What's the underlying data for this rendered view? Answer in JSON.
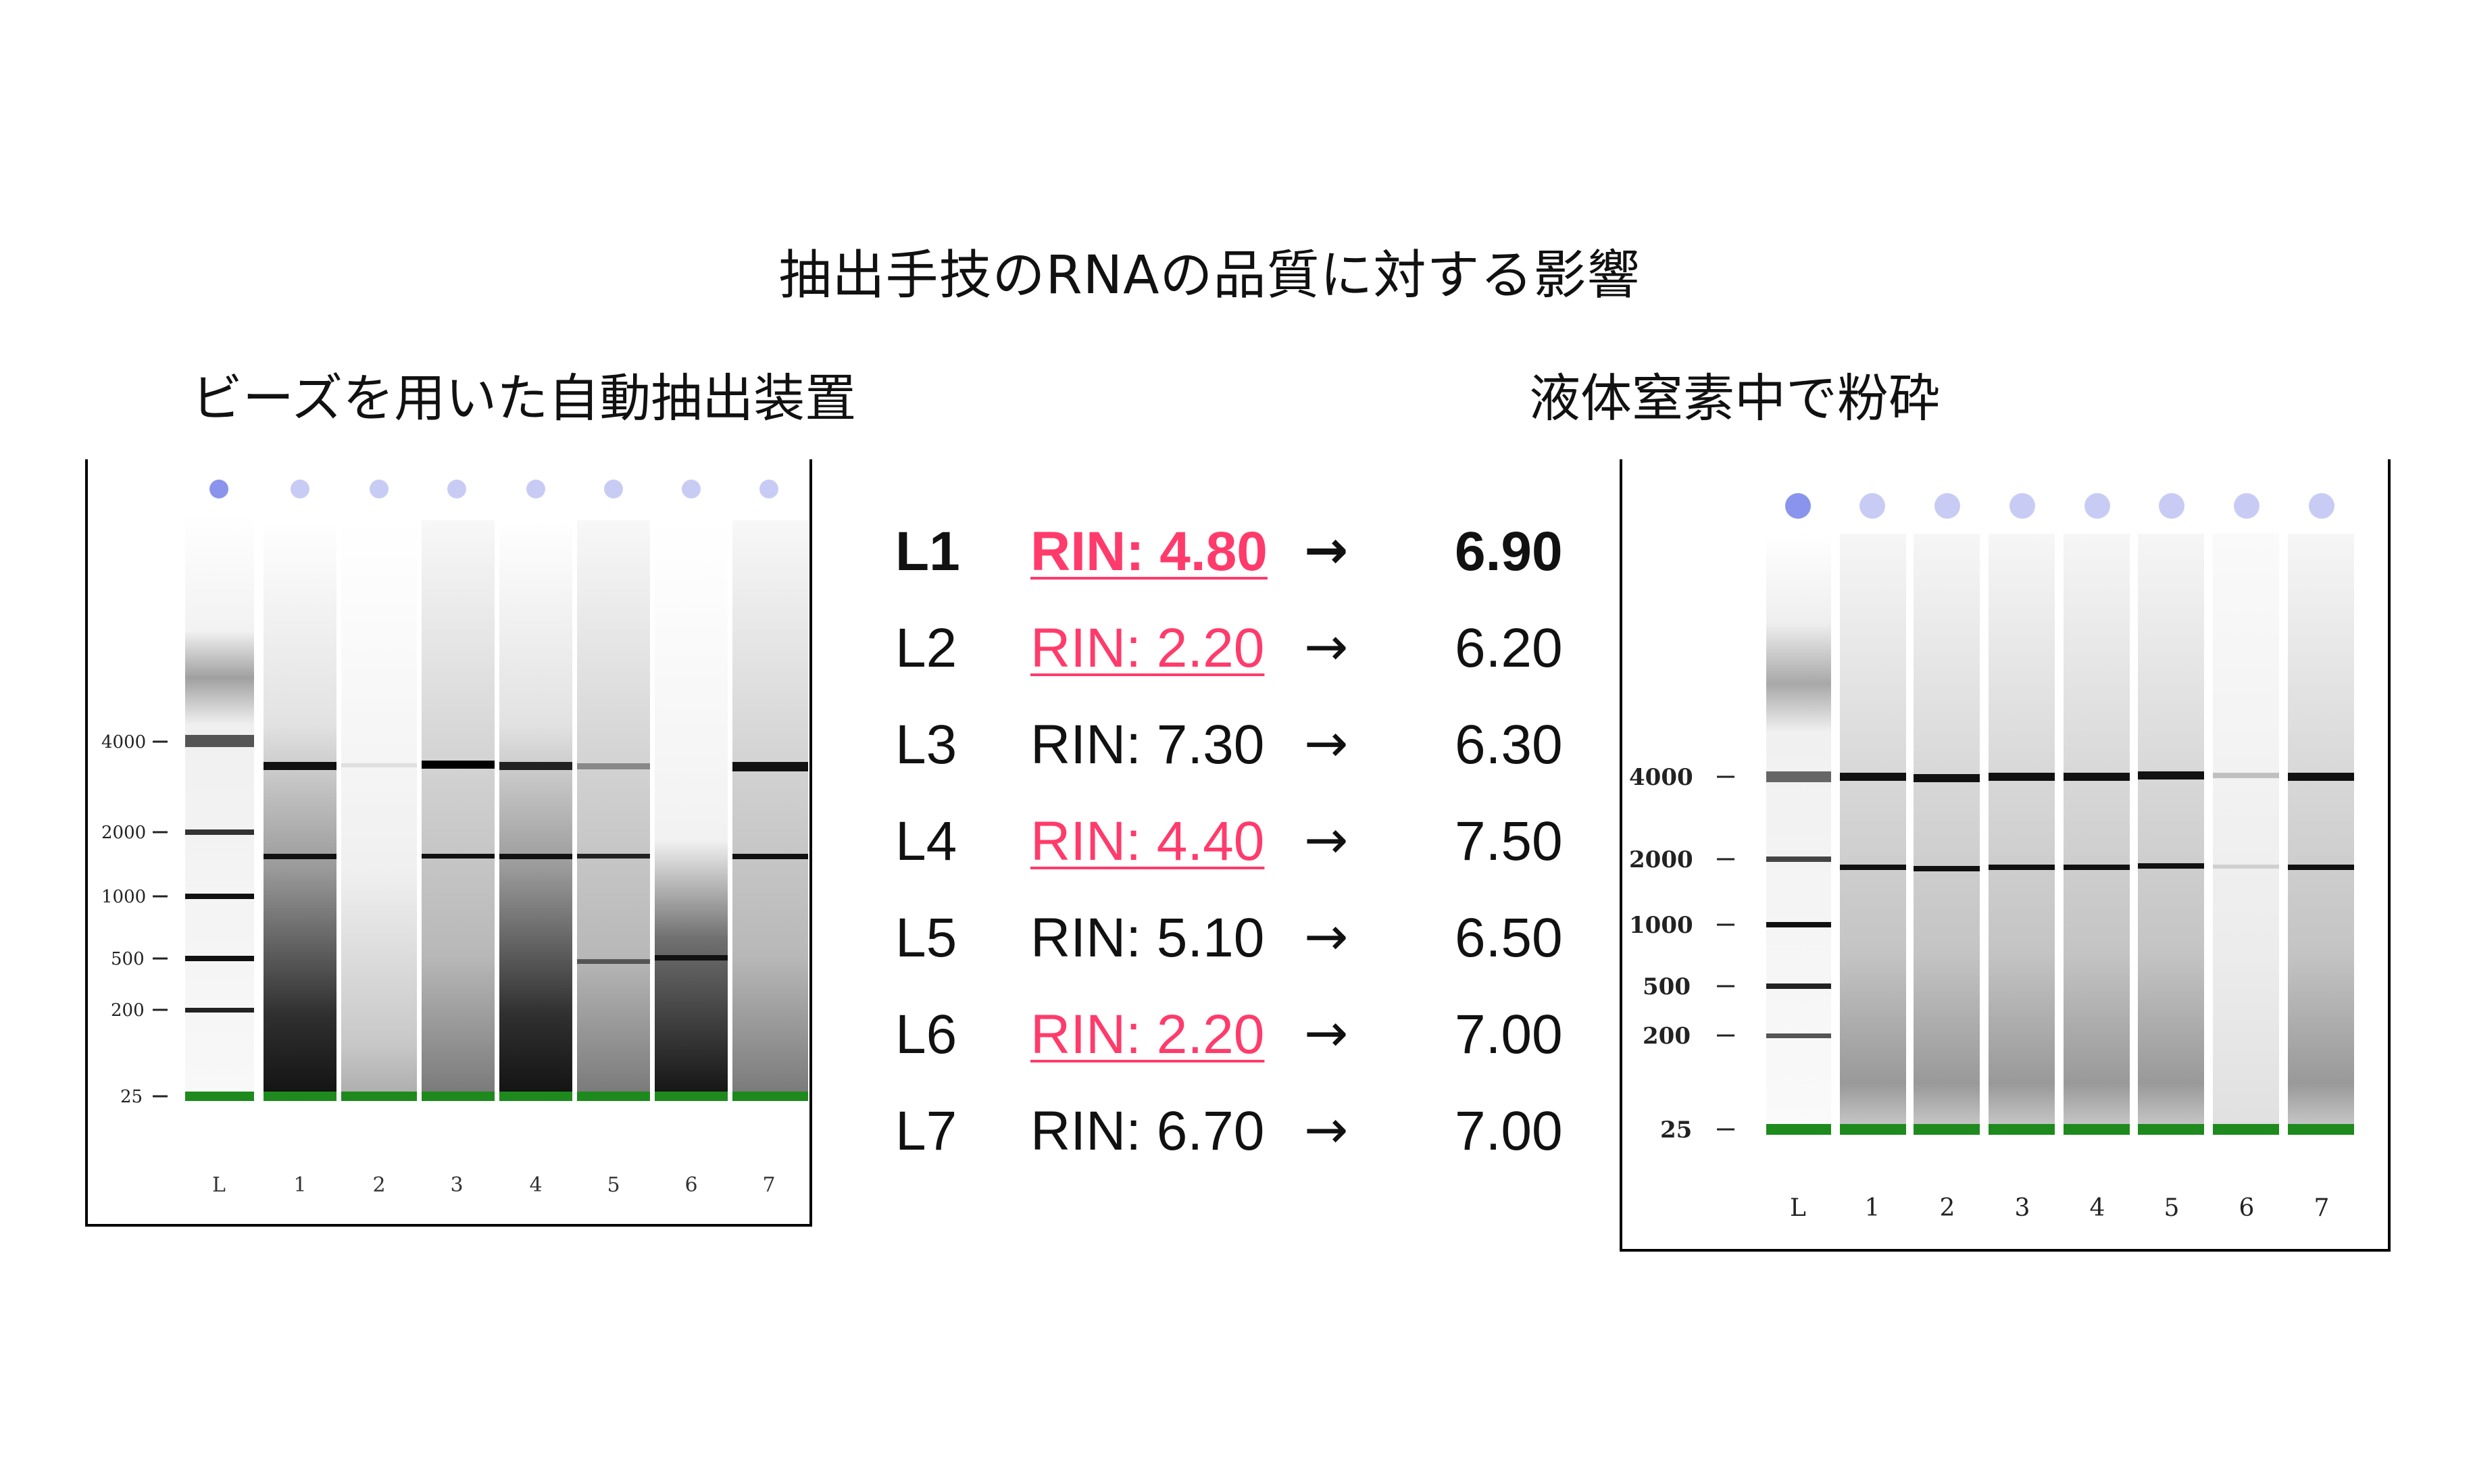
{
  "title": "抽出手技のRNAの品質に対する影響",
  "left_panel": {
    "title": "ビーズを用いた自動抽出装置",
    "ladder_labels": [
      "4000",
      "2000",
      "1000",
      "500",
      "200",
      "25"
    ],
    "lane_labels": [
      "L",
      "1",
      "2",
      "3",
      "4",
      "5",
      "6",
      "7"
    ]
  },
  "right_panel": {
    "title": "液体窒素中で粉砕",
    "ladder_labels": [
      "4000",
      "2000",
      "1000",
      "500",
      "200",
      "25"
    ],
    "lane_labels": [
      "L",
      "1",
      "2",
      "3",
      "4",
      "5",
      "6",
      "7"
    ]
  },
  "rin_rows": [
    {
      "lane": "L1",
      "before": "RIN: 4.80",
      "arrow": "→",
      "after": "6.90",
      "highlight": true,
      "bold": true
    },
    {
      "lane": "L2",
      "before": "RIN: 2.20",
      "arrow": "→",
      "after": "6.20",
      "highlight": true,
      "bold": false
    },
    {
      "lane": "L3",
      "before": "RIN: 7.30",
      "arrow": "→",
      "after": "6.30",
      "highlight": false,
      "bold": false
    },
    {
      "lane": "L4",
      "before": "RIN: 4.40",
      "arrow": "→",
      "after": "7.50",
      "highlight": true,
      "bold": false
    },
    {
      "lane": "L5",
      "before": "RIN: 5.10",
      "arrow": "→",
      "after": "6.50",
      "highlight": false,
      "bold": false
    },
    {
      "lane": "L6",
      "before": "RIN: 2.20",
      "arrow": "→",
      "after": "7.00",
      "highlight": true,
      "bold": false
    },
    {
      "lane": "L7",
      "before": "RIN: 6.70",
      "arrow": "→",
      "after": "7.00",
      "highlight": false,
      "bold": false
    }
  ],
  "colors": {
    "highlight": "#ff3b6b",
    "marker_band": "#1e8a1e",
    "well_dot": "#c8ccf4",
    "ladder_well_dot": "#8a94ec"
  }
}
